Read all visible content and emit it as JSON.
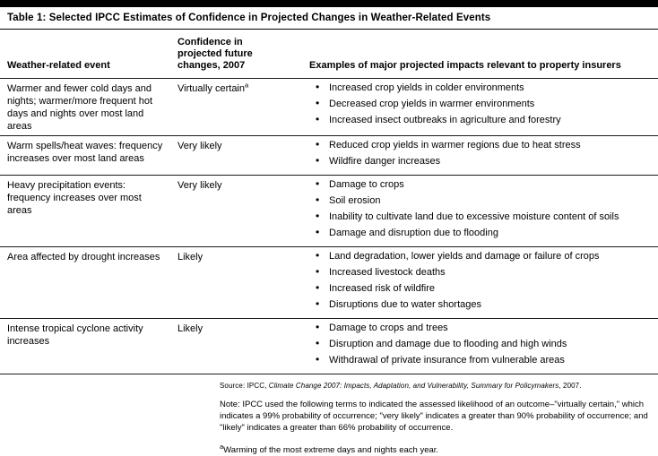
{
  "title": "Table 1: Selected IPCC Estimates of Confidence in Projected Changes in Weather-Related Events",
  "table": {
    "columns": {
      "event": "Weather-related event",
      "confidence": "Confidence in projected future changes, 2007",
      "examples": "Examples of major projected impacts relevant to property insurers"
    },
    "rows": [
      {
        "event": "Warmer and fewer cold days and nights; warmer/more frequent hot days and nights over most land areas",
        "confidence": "Virtually certain",
        "confidence_marker": "a",
        "examples": [
          "Increased crop yields in colder environments",
          "Decreased crop yields in warmer environments",
          "Increased insect outbreaks in agriculture and forestry"
        ]
      },
      {
        "event": "Warm spells/heat waves: frequency increases over most land areas",
        "confidence": "Very likely",
        "examples": [
          "Reduced crop yields in warmer regions due to heat stress",
          "Wildfire danger increases"
        ]
      },
      {
        "event": "Heavy precipitation events: frequency increases over most areas",
        "confidence": "Very likely",
        "examples": [
          "Damage to crops",
          "Soil erosion",
          "Inability to cultivate land due to excessive moisture content of soils",
          "Damage and disruption due to flooding"
        ]
      },
      {
        "event": "Area affected by drought increases",
        "confidence": "Likely",
        "examples": [
          "Land degradation, lower yields and damage or failure of crops",
          "Increased livestock deaths",
          "Increased risk of wildfire",
          "Disruptions due to water shortages"
        ]
      },
      {
        "event": "Intense tropical cyclone activity increases",
        "confidence": "Likely",
        "examples": [
          "Damage to crops and trees",
          "Disruption and damage due to flooding and high winds",
          "Withdrawal of private insurance from vulnerable areas"
        ]
      }
    ]
  },
  "footer": {
    "source_prefix": "Source: IPCC, ",
    "source_title": "Climate Change 2007: Impacts, Adaptation, and Vulnerability, Summary for Policymakers",
    "source_suffix": ", 2007.",
    "note": "Note: IPCC used the following terms to indicated the assessed likelihood of an outcome–\"virtually certain,\" which indicates a 99% probability of occurrence; \"very likely\" indicates a greater than 90% probability of occurrence; and \"likely\" indicates a greater than 66% probability of occurrence.",
    "footnote_marker": "a",
    "footnote_text": "Warming of the most extreme days and nights each year."
  },
  "colors": {
    "top_bar": "#000000",
    "rule": "#1a1a1a",
    "text": "#000000",
    "background": "#ffffff"
  }
}
